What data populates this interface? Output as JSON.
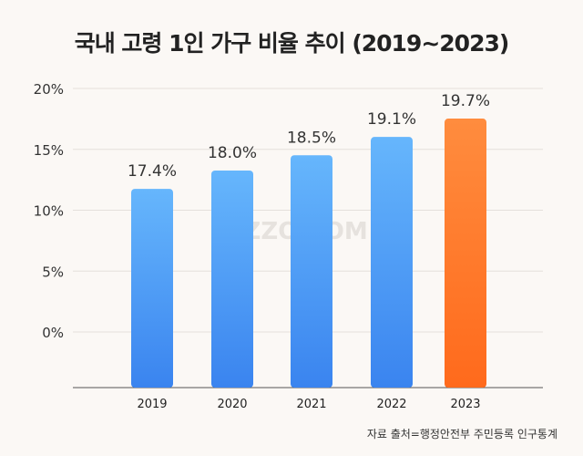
{
  "chart_data": {
    "type": "bar",
    "title": "국내 고령 1인 가구 비율 추이 (2019~2023)",
    "categories": [
      "2019",
      "2020",
      "2021",
      "2022",
      "2023"
    ],
    "values": [
      17.4,
      18.0,
      18.5,
      19.1,
      19.7
    ],
    "data_labels": [
      "17.4%",
      "18.0%",
      "18.5%",
      "19.1%",
      "19.7%"
    ],
    "y_ticks": [
      "0%",
      "5%",
      "10%",
      "15%",
      "20%"
    ],
    "ylim": [
      0,
      20
    ],
    "grid": true,
    "legend": "none",
    "colors": {
      "default": "#4a98f5",
      "highlight": "#ff7a2a"
    },
    "highlight_index": 4,
    "source": "자료 출처=행정안전부 주민등록 인구통계",
    "watermark": "DIZZO.COM"
  }
}
